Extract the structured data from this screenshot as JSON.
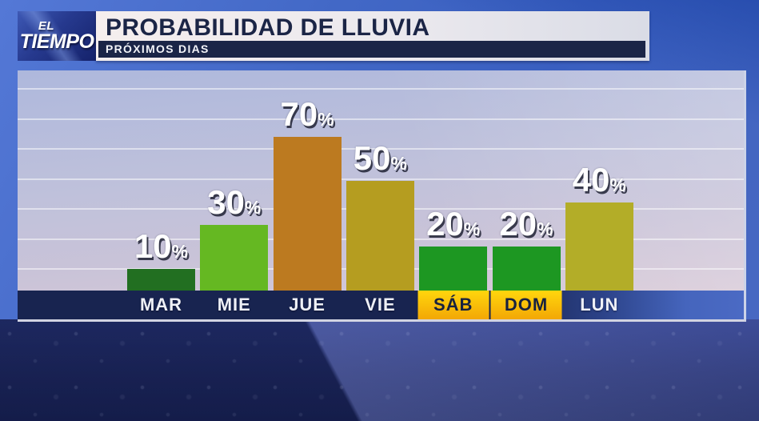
{
  "logo": {
    "line1": "EL",
    "line2": "TIEMPO"
  },
  "header": {
    "title": "PROBABILIDAD DE LLUVIA",
    "subtitle": "PRÓXIMOS DIAS"
  },
  "chart_data": {
    "type": "bar",
    "title": "PROBABILIDAD DE LLUVIA",
    "subtitle": "PRÓXIMOS DIAS",
    "categories": [
      "MAR",
      "MIE",
      "JUE",
      "VIE",
      "SÁB",
      "DOM",
      "LUN"
    ],
    "values": [
      10,
      30,
      70,
      50,
      20,
      20,
      40
    ],
    "value_suffix": "%",
    "highlighted_categories": [
      "SÁB",
      "DOM"
    ],
    "bar_colors": [
      "#226f21",
      "#65b822",
      "#bc7a20",
      "#b59d20",
      "#1d9722",
      "#1d9722",
      "#b3ad28"
    ],
    "xlabel": "",
    "ylabel": "",
    "ylim": [
      0,
      100
    ],
    "grid": true,
    "legend": "none"
  },
  "colors": {
    "axis_bar_navy": "#182450",
    "highlight_gold_top": "#ffd60d",
    "highlight_gold_bottom": "#f3a705",
    "title_navy": "#1b2546",
    "value_label_white": "#ffffff"
  }
}
